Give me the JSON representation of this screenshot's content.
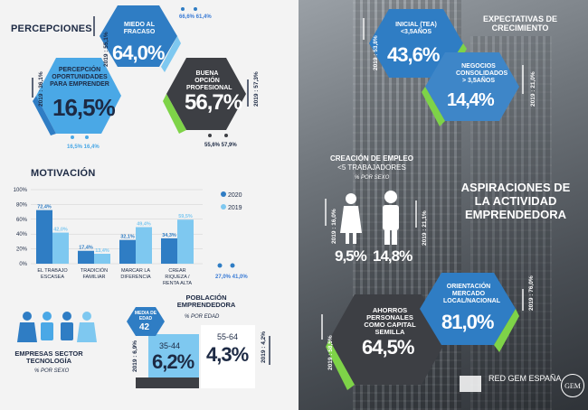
{
  "perceptions": {
    "title": "PERCEPCIONES",
    "fear": {
      "label": "MIEDO AL FRACASO",
      "value": "64,0%",
      "prev": "2019 : 55,1%",
      "by_sex": "66,6%   61,4%"
    },
    "opportunities": {
      "label": "PERCEPCIÓN OPORTUNIDADES PARA EMPRENDER",
      "value": "16,5%",
      "prev": "2019 : 36,1%",
      "by_sex": "16,5%  16,4%"
    },
    "good_option": {
      "label": "BUENA OPCIÓN PROFESIONAL",
      "value": "56,7%",
      "prev": "2019 : 57,3%",
      "by_sex": "55,6%  57,9%"
    }
  },
  "motivation": {
    "title": "MOTIVACIÓN",
    "legend": [
      "2020",
      "2019"
    ],
    "ticks": [
      "100%",
      "80%",
      "60%",
      "40%",
      "20%",
      "0%"
    ],
    "extra": "27,0%  41,0%"
  },
  "chart_data": {
    "type": "bar",
    "categories": [
      "EL TRABAJO ESCASEA",
      "TRADICIÓN FAMILIAR",
      "MARCAR LA DIFERENCIA",
      "CREAR RIQUEZA / RENTA ALTA"
    ],
    "series": [
      {
        "name": "2020",
        "values": [
          72.4,
          17.4,
          32.1,
          34.3
        ],
        "labels": [
          "72,4%",
          "17,4%",
          "32,1%",
          "34,3%"
        ]
      },
      {
        "name": "2019",
        "values": [
          42.0,
          13.4,
          49.4,
          59.5
        ],
        "labels": [
          "42,0%",
          "13,4%",
          "49,4%",
          "59,5%"
        ]
      }
    ],
    "ylim": [
      0,
      100
    ],
    "colors": {
      "2020": "#2f7dc4",
      "2019": "#7ec8f0"
    }
  },
  "tech": {
    "label": "EMPRESAS SECTOR TECNOLOGÍA",
    "sub": "% POR SEXO"
  },
  "population": {
    "title": "POBLACIÓN EMPRENDEDORA",
    "sub": "% POR EDAD",
    "median_label": "MEDIA DE EDAD",
    "median_value": "42",
    "age1": {
      "range": "35-44",
      "value": "6,2%",
      "prev": "2019 : 6,9%"
    },
    "age2": {
      "range": "55-64",
      "value": "4,3%",
      "prev": "2019 : 4,2%"
    }
  },
  "growth": {
    "title": "EXPECTATIVAS DE CRECIMIENTO",
    "initial": {
      "label": "INICIAL (TEA) <3,5AÑOS",
      "value": "43,6%",
      "prev": "2019 : 53,8%"
    },
    "consolidated": {
      "label": "NEGOCIOS CONSOLIDADOS > 3,5AÑOS",
      "value": "14,4%",
      "prev": "2019 : 21,0%"
    }
  },
  "employment": {
    "title": "CREACIÓN DE EMPLEO",
    "sub": "<5 TRABAJADORES",
    "sub2": "% POR SEXO",
    "female": {
      "value": "9,5%",
      "prev": "2019 : 16,0%"
    },
    "male": {
      "value": "14,8%",
      "prev": "2019 : 21,1%"
    }
  },
  "aspirations": {
    "title": "ASPIRACIONES DE LA ACTIVIDAD EMPRENDEDORA"
  },
  "savings": {
    "label": "AHORROS PERSONALES COMO CAPITAL SEMILLA",
    "value": "64,5%",
    "prev": "2019 : 58,5%"
  },
  "market": {
    "label": "ORIENTACIÓN MERCADO LOCAL/NACIONAL",
    "value": "81,0%",
    "prev": "2019 : 76,0%"
  },
  "logos": {
    "redgem": "RED GEM ESPAÑA",
    "gem": "GEM"
  }
}
